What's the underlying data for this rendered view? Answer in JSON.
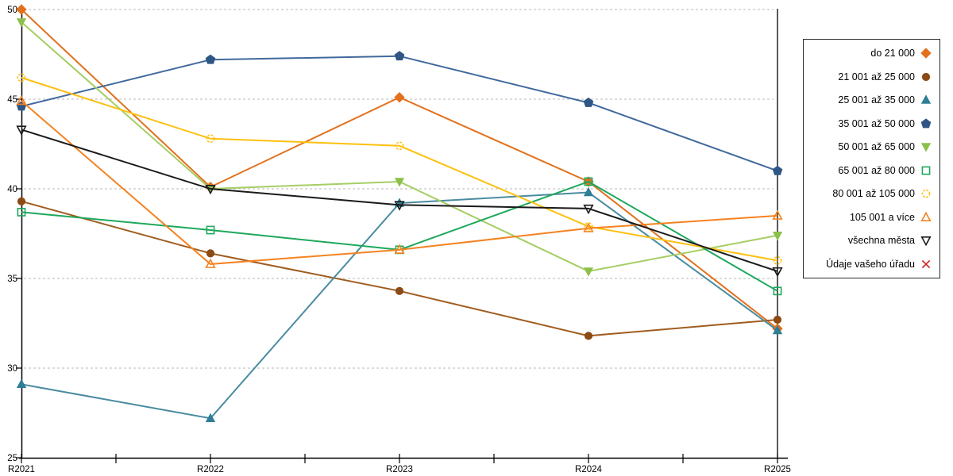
{
  "chart_data": {
    "type": "line",
    "title": "",
    "xlabel": "",
    "ylabel": "",
    "categories": [
      "R2021",
      "R2022",
      "R2023",
      "R2024",
      "R2025"
    ],
    "ylim": [
      25,
      50
    ],
    "yticks": [
      25,
      30,
      35,
      40,
      45,
      50
    ],
    "grid": "horizontal dashed gridlines at 30,35,40,45,50",
    "legend_position": "right, outside plot, bordered box, text right-aligned with marker at right",
    "extra_lines": [
      "vertical black line at R2025"
    ],
    "series": [
      {
        "name": "do 21 000",
        "marker": "diamond",
        "style": "filled",
        "line_color": "#E2711D",
        "marker_color": "#E2711D",
        "values": [
          50.0,
          40.1,
          45.1,
          40.4,
          32.2
        ]
      },
      {
        "name": "21 001 až 25 000",
        "marker": "circle",
        "style": "filled",
        "line_color": "#A05C1F",
        "marker_color": "#8C4A15",
        "values": [
          39.3,
          36.4,
          34.3,
          31.8,
          32.7
        ]
      },
      {
        "name": "25 001 až 35 000",
        "marker": "triangle-up",
        "style": "filled",
        "line_color": "#4A8BA0",
        "marker_color": "#2E7E95",
        "values": [
          29.1,
          27.2,
          39.2,
          39.8,
          32.1
        ]
      },
      {
        "name": "35 001 až 50 000",
        "marker": "pentagon",
        "style": "filled",
        "line_color": "#41699C",
        "marker_color": "#2F5685",
        "values": [
          44.6,
          47.2,
          47.4,
          44.8,
          41.0
        ]
      },
      {
        "name": "50 001 až 65 000",
        "marker": "triangle-down",
        "style": "filled",
        "line_color": "#A5CE63",
        "marker_color": "#8BC04A",
        "values": [
          49.3,
          40.0,
          40.4,
          35.4,
          37.4
        ]
      },
      {
        "name": "65 001 až 80 000",
        "marker": "square",
        "style": "open",
        "line_color": "#1EA85C",
        "marker_color": "#1EA85C",
        "values": [
          38.7,
          37.7,
          36.6,
          40.4,
          34.3
        ]
      },
      {
        "name": "80 001 až 105 000",
        "marker": "circle-dashed",
        "style": "open",
        "line_color": "#FDC010",
        "marker_color": "#FDC010",
        "values": [
          46.2,
          42.8,
          42.4,
          37.9,
          36.0
        ]
      },
      {
        "name": "105 001 a více",
        "marker": "triangle-up",
        "style": "open",
        "line_color": "#F58220",
        "marker_color": "#F58220",
        "values": [
          44.9,
          35.8,
          36.6,
          37.8,
          38.5
        ]
      },
      {
        "name": "všechna města",
        "marker": "triangle-down",
        "style": "open",
        "line_color": "#1A1A1A",
        "marker_color": "#1A1A1A",
        "values": [
          43.3,
          40.0,
          39.1,
          38.9,
          35.4
        ]
      },
      {
        "name": "Údaje vašeho úřadu",
        "marker": "x",
        "style": "open",
        "line_color": "#CE2127",
        "marker_color": "#CE2127",
        "values": []
      }
    ]
  }
}
